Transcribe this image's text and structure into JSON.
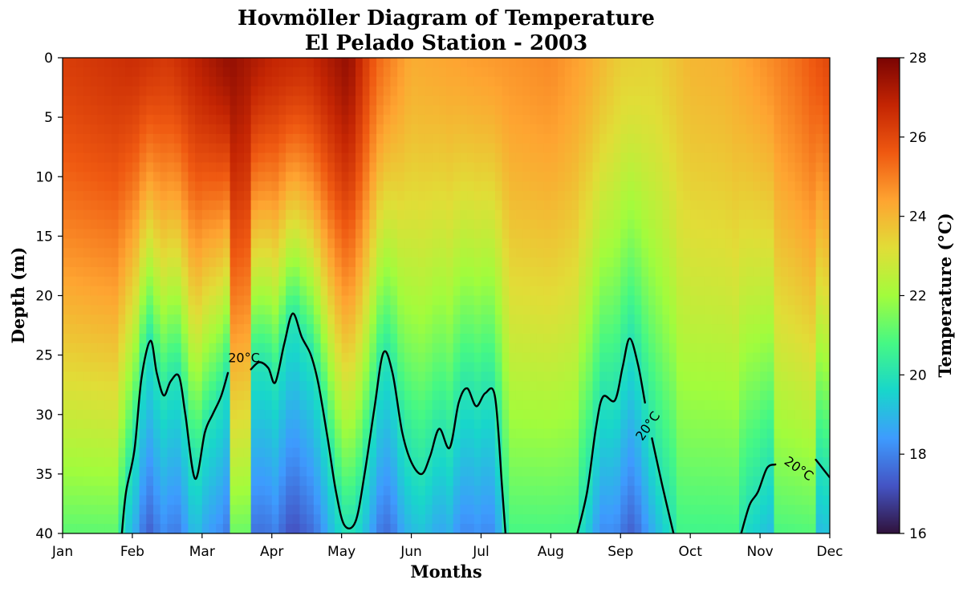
{
  "chart_data": {
    "type": "heatmap",
    "title": "Hovmöller Diagram of Temperature",
    "subtitle": "El Pelado Station - 2003",
    "xlabel": "Months",
    "ylabel": "Depth (m)",
    "x_ticks": [
      "Jan",
      "Feb",
      "Mar",
      "Apr",
      "May",
      "Jun",
      "Jul",
      "Aug",
      "Sep",
      "Oct",
      "Nov",
      "Dec"
    ],
    "y_ticks": [
      "0",
      "5",
      "10",
      "15",
      "20",
      "25",
      "30",
      "35",
      "40"
    ],
    "xlim": [
      0,
      11
    ],
    "ylim": [
      40,
      0
    ],
    "y_inverted": true,
    "colorbar": {
      "label": "Temperature (°C)",
      "range": [
        16,
        28
      ],
      "ticks": [
        "16",
        "18",
        "20",
        "22",
        "24",
        "26",
        "28"
      ],
      "colormap": "turbo"
    },
    "contour": {
      "level": 20,
      "label": "20°C",
      "segments": [
        [
          [
            0.85,
            40
          ],
          [
            0.91,
            36.5
          ],
          [
            1.03,
            33
          ],
          [
            1.13,
            27
          ],
          [
            1.26,
            23.8
          ],
          [
            1.35,
            26.5
          ],
          [
            1.45,
            28.4
          ],
          [
            1.55,
            27.2
          ],
          [
            1.67,
            26.8
          ],
          [
            1.76,
            30
          ],
          [
            1.9,
            35.4
          ],
          [
            2.04,
            31.5
          ],
          [
            2.15,
            30
          ],
          [
            2.27,
            28.5
          ],
          [
            2.37,
            26.5
          ]
        ],
        [
          [
            2.7,
            26.2
          ],
          [
            2.82,
            25.6
          ],
          [
            2.95,
            26.1
          ],
          [
            3.05,
            27.3
          ],
          [
            3.18,
            24
          ],
          [
            3.3,
            21.5
          ],
          [
            3.43,
            23.5
          ],
          [
            3.56,
            25
          ],
          [
            3.67,
            27.5
          ],
          [
            3.8,
            32
          ],
          [
            3.92,
            36.5
          ],
          [
            4.04,
            39.3
          ],
          [
            4.2,
            39
          ],
          [
            4.33,
            35
          ],
          [
            4.47,
            29.5
          ],
          [
            4.6,
            24.8
          ],
          [
            4.73,
            26.5
          ],
          [
            4.87,
            31.5
          ],
          [
            5.0,
            34
          ],
          [
            5.15,
            35
          ],
          [
            5.27,
            33.5
          ],
          [
            5.4,
            31.2
          ],
          [
            5.55,
            32.8
          ],
          [
            5.68,
            29
          ],
          [
            5.8,
            27.8
          ],
          [
            5.93,
            29.3
          ],
          [
            6.06,
            28.2
          ],
          [
            6.2,
            28.5
          ],
          [
            6.3,
            36
          ],
          [
            6.35,
            40
          ]
        ],
        [
          [
            7.38,
            40
          ],
          [
            7.52,
            36.5
          ],
          [
            7.65,
            31
          ],
          [
            7.75,
            28.5
          ],
          [
            7.92,
            28.8
          ],
          [
            8.03,
            26
          ],
          [
            8.13,
            23.6
          ],
          [
            8.25,
            25.8
          ],
          [
            8.35,
            29
          ]
        ],
        [
          [
            8.45,
            32
          ],
          [
            8.6,
            36
          ],
          [
            8.76,
            40
          ]
        ],
        [
          [
            9.73,
            40
          ],
          [
            9.85,
            37.6
          ],
          [
            9.97,
            36.5
          ],
          [
            10.1,
            34.5
          ],
          [
            10.22,
            34.2
          ]
        ],
        [
          [
            10.8,
            33.8
          ],
          [
            10.92,
            34.7
          ],
          [
            11.0,
            35.3
          ]
        ]
      ],
      "label_positions": [
        [
          2.6,
          25.3,
          0
        ],
        [
          8.4,
          31.0,
          -55
        ],
        [
          10.55,
          34.6,
          35
        ]
      ]
    },
    "series": [],
    "grid": false
  }
}
